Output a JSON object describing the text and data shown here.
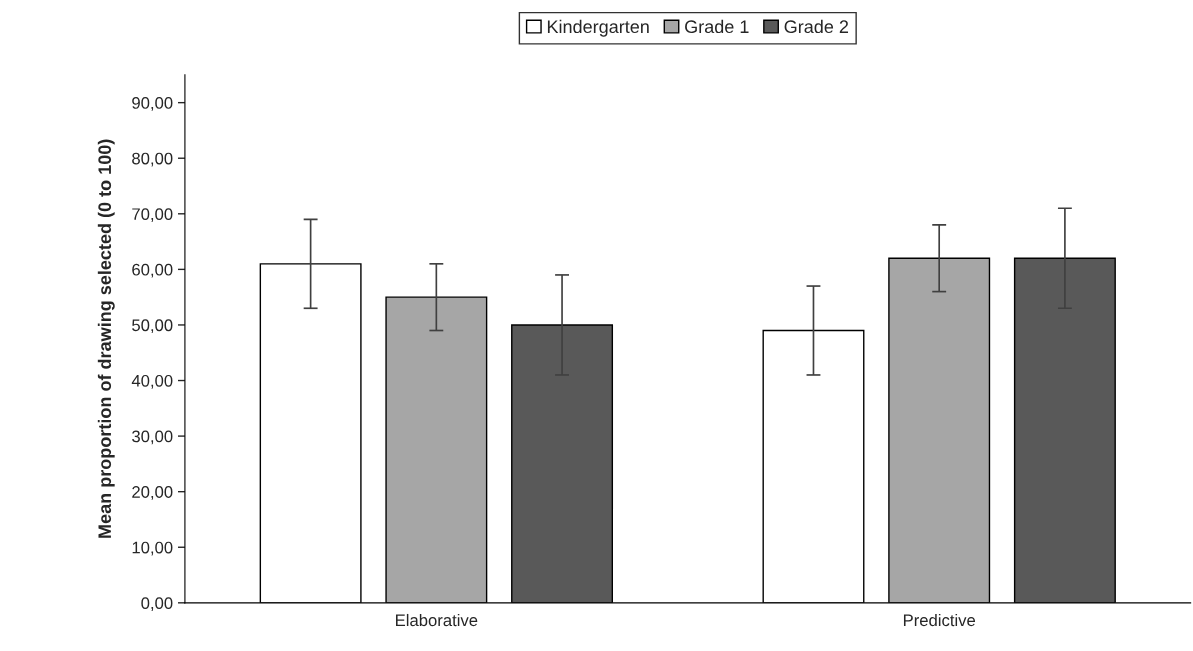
{
  "chart_data": {
    "type": "bar",
    "categories": [
      "Elaborative",
      "Predictive"
    ],
    "ylabel": "Mean proportion of drawing selected (0 to 100)",
    "series": [
      {
        "name": "Kindergarten",
        "color": "#ffffff",
        "values": [
          61,
          49
        ],
        "errors": [
          8,
          8
        ]
      },
      {
        "name": "Grade 1",
        "color": "#a6a6a6",
        "values": [
          55,
          62
        ],
        "errors": [
          6,
          6
        ]
      },
      {
        "name": "Grade 2",
        "color": "#595959",
        "values": [
          50,
          62
        ],
        "errors": [
          9,
          9
        ]
      }
    ],
    "ylim": [
      0,
      95
    ],
    "yticks": [
      {
        "value": 0,
        "label": "0,00"
      },
      {
        "value": 10,
        "label": "10,00"
      },
      {
        "value": 20,
        "label": "20,00"
      },
      {
        "value": 30,
        "label": "30,00"
      },
      {
        "value": 40,
        "label": "40,00"
      },
      {
        "value": 50,
        "label": "50,00"
      },
      {
        "value": 60,
        "label": "60,00"
      },
      {
        "value": 70,
        "label": "70,00"
      },
      {
        "value": 80,
        "label": "80,00"
      },
      {
        "value": 90,
        "label": "90,00"
      }
    ],
    "grid": false,
    "legend": "top"
  }
}
